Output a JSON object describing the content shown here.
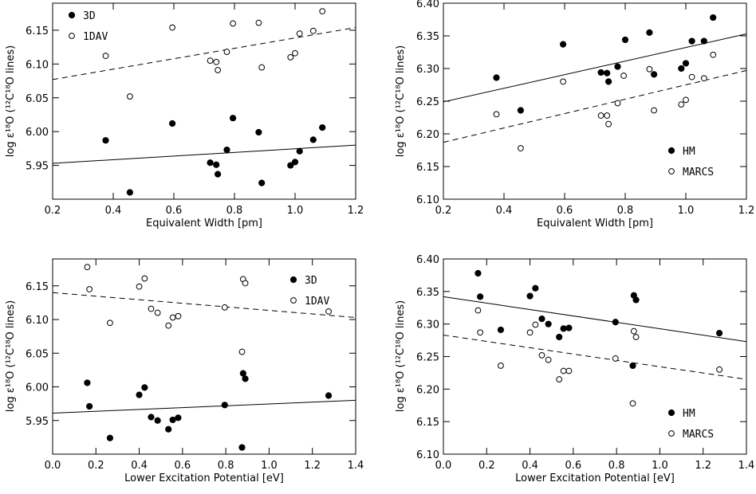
{
  "chart_data": [
    {
      "type": "scatter",
      "xlabel": "Equivalent Width [pm]",
      "ylabel": "log ε¹⁸O (¹²C¹⁸O lines)",
      "xlim": [
        0.2,
        1.2
      ],
      "ylim": [
        5.9,
        6.19
      ],
      "xticks": [
        "0.2",
        "0.4",
        "0.6",
        "0.8",
        "1.0",
        "1.2"
      ],
      "yticks": [
        "5.95",
        "6.00",
        "6.05",
        "6.10",
        "6.15"
      ],
      "legend_position": "top-left",
      "series": [
        {
          "name": "3D",
          "marker": "filled",
          "points": [
            [
              0.375,
              5.987
            ],
            [
              0.455,
              5.91
            ],
            [
              0.595,
              6.012
            ],
            [
              0.72,
              5.954
            ],
            [
              0.74,
              5.951
            ],
            [
              0.745,
              5.937
            ],
            [
              0.775,
              5.973
            ],
            [
              0.795,
              6.02
            ],
            [
              0.88,
              5.999
            ],
            [
              0.89,
              5.924
            ],
            [
              0.985,
              5.95
            ],
            [
              1.0,
              5.955
            ],
            [
              1.015,
              5.971
            ],
            [
              1.06,
              5.988
            ],
            [
              1.09,
              6.006
            ]
          ],
          "fit": {
            "style": "solid",
            "y_at_xmin": 5.953,
            "y_at_xmax": 5.98
          }
        },
        {
          "name": "1DAV",
          "marker": "open",
          "points": [
            [
              0.375,
              6.112
            ],
            [
              0.455,
              6.052
            ],
            [
              0.595,
              6.154
            ],
            [
              0.72,
              6.105
            ],
            [
              0.74,
              6.103
            ],
            [
              0.745,
              6.091
            ],
            [
              0.775,
              6.118
            ],
            [
              0.795,
              6.16
            ],
            [
              0.88,
              6.161
            ],
            [
              0.89,
              6.095
            ],
            [
              0.985,
              6.11
            ],
            [
              1.0,
              6.116
            ],
            [
              1.015,
              6.145
            ],
            [
              1.06,
              6.149
            ],
            [
              1.09,
              6.178
            ]
          ],
          "fit": {
            "style": "dashed",
            "y_at_xmin": 6.077,
            "y_at_xmax": 6.154
          }
        }
      ]
    },
    {
      "type": "scatter",
      "xlabel": "Equivalent Width [pm]",
      "ylabel": "log ε¹⁸O (¹²C¹⁸O lines)",
      "xlim": [
        0.2,
        1.2
      ],
      "ylim": [
        6.1,
        6.4
      ],
      "xticks": [
        "0.2",
        "0.4",
        "0.6",
        "0.8",
        "1.0",
        "1.2"
      ],
      "yticks": [
        "6.10",
        "6.15",
        "6.20",
        "6.25",
        "6.30",
        "6.35",
        "6.40"
      ],
      "legend_position": "bottom-right",
      "series": [
        {
          "name": "HM",
          "marker": "filled",
          "points": [
            [
              0.375,
              6.286
            ],
            [
              0.455,
              6.236
            ],
            [
              0.595,
              6.337
            ],
            [
              0.72,
              6.294
            ],
            [
              0.74,
              6.293
            ],
            [
              0.745,
              6.28
            ],
            [
              0.775,
              6.303
            ],
            [
              0.8,
              6.344
            ],
            [
              0.88,
              6.355
            ],
            [
              0.895,
              6.291
            ],
            [
              0.985,
              6.3
            ],
            [
              1.0,
              6.308
            ],
            [
              1.02,
              6.342
            ],
            [
              1.06,
              6.342
            ],
            [
              1.09,
              6.378
            ]
          ],
          "fit": {
            "style": "solid",
            "y_at_xmin": 6.249,
            "y_at_xmax": 6.353
          }
        },
        {
          "name": "MARCS",
          "marker": "open",
          "points": [
            [
              0.375,
              6.23
            ],
            [
              0.455,
              6.178
            ],
            [
              0.595,
              6.28
            ],
            [
              0.72,
              6.228
            ],
            [
              0.74,
              6.228
            ],
            [
              0.745,
              6.215
            ],
            [
              0.775,
              6.247
            ],
            [
              0.795,
              6.289
            ],
            [
              0.88,
              6.299
            ],
            [
              0.895,
              6.236
            ],
            [
              0.985,
              6.245
            ],
            [
              1.0,
              6.252
            ],
            [
              1.02,
              6.287
            ],
            [
              1.06,
              6.285
            ],
            [
              1.09,
              6.321
            ]
          ],
          "fit": {
            "style": "dashed",
            "y_at_xmin": 6.187,
            "y_at_xmax": 6.297
          }
        }
      ]
    },
    {
      "type": "scatter",
      "xlabel": "Lower Excitation Potential [eV]",
      "ylabel": "log ε¹⁸O (¹²C¹⁸O lines)",
      "xlim": [
        0.0,
        1.4
      ],
      "ylim": [
        5.9,
        6.19
      ],
      "xticks": [
        "0.0",
        "0.2",
        "0.4",
        "0.6",
        "0.8",
        "1.0",
        "1.2",
        "1.4"
      ],
      "yticks": [
        "5.95",
        "6.00",
        "6.05",
        "6.10",
        "6.15"
      ],
      "legend_position": "top-right",
      "series": [
        {
          "name": "3D",
          "marker": "filled",
          "points": [
            [
              0.16,
              6.006
            ],
            [
              0.17,
              5.971
            ],
            [
              0.265,
              5.924
            ],
            [
              0.4,
              5.988
            ],
            [
              0.425,
              5.999
            ],
            [
              0.455,
              5.955
            ],
            [
              0.485,
              5.95
            ],
            [
              0.535,
              5.937
            ],
            [
              0.555,
              5.951
            ],
            [
              0.58,
              5.954
            ],
            [
              0.795,
              5.973
            ],
            [
              0.875,
              5.91
            ],
            [
              0.88,
              6.02
            ],
            [
              0.89,
              6.012
            ],
            [
              1.275,
              5.987
            ]
          ],
          "fit": {
            "style": "solid",
            "y_at_xmin": 5.961,
            "y_at_xmax": 5.98
          }
        },
        {
          "name": "1DAV",
          "marker": "open",
          "points": [
            [
              0.16,
              6.178
            ],
            [
              0.17,
              6.145
            ],
            [
              0.265,
              6.095
            ],
            [
              0.4,
              6.149
            ],
            [
              0.425,
              6.161
            ],
            [
              0.455,
              6.116
            ],
            [
              0.485,
              6.11
            ],
            [
              0.535,
              6.091
            ],
            [
              0.555,
              6.103
            ],
            [
              0.58,
              6.105
            ],
            [
              0.795,
              6.118
            ],
            [
              0.875,
              6.052
            ],
            [
              0.88,
              6.16
            ],
            [
              0.89,
              6.154
            ],
            [
              1.275,
              6.112
            ]
          ],
          "fit": {
            "style": "dashed",
            "y_at_xmin": 6.14,
            "y_at_xmax": 6.103
          }
        }
      ]
    },
    {
      "type": "scatter",
      "xlabel": "Lower Excitation Potential [eV]",
      "ylabel": "log ε¹⁸O (¹²C¹⁸O lines)",
      "xlim": [
        0.0,
        1.4
      ],
      "ylim": [
        6.1,
        6.4
      ],
      "xticks": [
        "0.0",
        "0.2",
        "0.4",
        "0.6",
        "0.8",
        "1.0",
        "1.2",
        "1.4"
      ],
      "yticks": [
        "6.10",
        "6.15",
        "6.20",
        "6.25",
        "6.30",
        "6.35",
        "6.40"
      ],
      "legend_position": "bottom-right",
      "series": [
        {
          "name": "HM",
          "marker": "filled",
          "points": [
            [
              0.16,
              6.378
            ],
            [
              0.17,
              6.342
            ],
            [
              0.265,
              6.291
            ],
            [
              0.4,
              6.343
            ],
            [
              0.425,
              6.355
            ],
            [
              0.455,
              6.308
            ],
            [
              0.485,
              6.3
            ],
            [
              0.535,
              6.28
            ],
            [
              0.555,
              6.293
            ],
            [
              0.58,
              6.294
            ],
            [
              0.795,
              6.303
            ],
            [
              0.875,
              6.236
            ],
            [
              0.88,
              6.344
            ],
            [
              0.89,
              6.337
            ],
            [
              1.275,
              6.286
            ]
          ],
          "fit": {
            "style": "solid",
            "y_at_xmin": 6.342,
            "y_at_xmax": 6.273
          }
        },
        {
          "name": "MARCS",
          "marker": "open",
          "points": [
            [
              0.16,
              6.321
            ],
            [
              0.17,
              6.287
            ],
            [
              0.265,
              6.236
            ],
            [
              0.4,
              6.287
            ],
            [
              0.425,
              6.299
            ],
            [
              0.455,
              6.252
            ],
            [
              0.485,
              6.245
            ],
            [
              0.535,
              6.215
            ],
            [
              0.555,
              6.228
            ],
            [
              0.58,
              6.228
            ],
            [
              0.795,
              6.247
            ],
            [
              0.875,
              6.178
            ],
            [
              0.88,
              6.289
            ],
            [
              0.89,
              6.28
            ],
            [
              1.275,
              6.23
            ]
          ],
          "fit": {
            "style": "dashed",
            "y_at_xmin": 6.283,
            "y_at_xmax": 6.215
          }
        }
      ]
    }
  ]
}
